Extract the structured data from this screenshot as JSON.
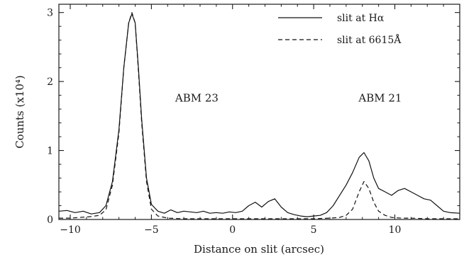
{
  "chart_data": {
    "type": "line",
    "xlabel": "Distance on slit (arcsec)",
    "ylabel": "Counts (x10⁴)",
    "xlim": [
      -10.7,
      14
    ],
    "ylim": [
      0,
      3.12
    ],
    "x_ticks": [
      -10,
      -5,
      0,
      5,
      10
    ],
    "y_ticks": [
      0,
      1,
      2,
      3
    ],
    "x_tick_labels": [
      "−10",
      "−5",
      "0",
      "5",
      "10"
    ],
    "y_tick_labels": [
      "0",
      "1",
      "2",
      "3"
    ],
    "grid": false,
    "legend_position": "top-right",
    "annotations": [
      {
        "text": "ABM 23",
        "x": -2.2,
        "y": 1.71
      },
      {
        "text": "ABM 21",
        "x": 9.1,
        "y": 1.71
      }
    ],
    "series": [
      {
        "name": "slit at Hα",
        "style": "solid",
        "x": [
          -10.7,
          -10.2,
          -9.7,
          -9.2,
          -8.7,
          -8.2,
          -7.8,
          -7.4,
          -7.0,
          -6.7,
          -6.4,
          -6.2,
          -6.0,
          -5.8,
          -5.6,
          -5.3,
          -5.0,
          -4.6,
          -4.2,
          -3.8,
          -3.4,
          -3.0,
          -2.6,
          -2.2,
          -1.8,
          -1.4,
          -1.0,
          -0.6,
          -0.2,
          0.2,
          0.6,
          1.0,
          1.4,
          1.8,
          2.2,
          2.6,
          3.0,
          3.4,
          3.8,
          4.2,
          4.6,
          5.0,
          5.4,
          5.8,
          6.2,
          6.6,
          7.0,
          7.4,
          7.8,
          8.1,
          8.4,
          8.7,
          9.0,
          9.4,
          9.8,
          10.2,
          10.6,
          11.0,
          11.4,
          11.8,
          12.2,
          12.6,
          13.0,
          13.4,
          14.0
        ],
        "y": [
          0.12,
          0.13,
          0.1,
          0.12,
          0.08,
          0.1,
          0.2,
          0.55,
          1.3,
          2.2,
          2.85,
          2.98,
          2.85,
          2.2,
          1.45,
          0.6,
          0.22,
          0.12,
          0.09,
          0.14,
          0.1,
          0.12,
          0.11,
          0.1,
          0.12,
          0.09,
          0.1,
          0.09,
          0.11,
          0.1,
          0.12,
          0.2,
          0.25,
          0.18,
          0.26,
          0.3,
          0.18,
          0.1,
          0.07,
          0.05,
          0.04,
          0.05,
          0.06,
          0.1,
          0.2,
          0.35,
          0.5,
          0.68,
          0.9,
          0.97,
          0.85,
          0.6,
          0.45,
          0.4,
          0.35,
          0.42,
          0.45,
          0.4,
          0.35,
          0.3,
          0.28,
          0.2,
          0.12,
          0.1,
          0.09
        ]
      },
      {
        "name": "slit at 6615Å",
        "style": "dashed",
        "x": [
          -10.7,
          -10.0,
          -9.4,
          -8.8,
          -8.2,
          -7.8,
          -7.4,
          -7.0,
          -6.7,
          -6.4,
          -6.2,
          -6.0,
          -5.8,
          -5.6,
          -5.3,
          -5.0,
          -4.6,
          -4.0,
          -3.0,
          -2.0,
          -1.0,
          0.0,
          1.0,
          2.0,
          3.0,
          4.0,
          5.0,
          6.0,
          6.6,
          7.0,
          7.4,
          7.8,
          8.1,
          8.4,
          8.7,
          9.0,
          9.4,
          9.8,
          10.4,
          11.0,
          12.0,
          13.0,
          14.0
        ],
        "y": [
          0.02,
          0.02,
          0.03,
          0.04,
          0.06,
          0.14,
          0.5,
          1.25,
          2.2,
          2.85,
          3.0,
          2.85,
          2.15,
          1.4,
          0.55,
          0.15,
          0.05,
          0.02,
          0.01,
          0.01,
          0.01,
          0.01,
          0.01,
          0.01,
          0.01,
          0.01,
          0.01,
          0.02,
          0.03,
          0.06,
          0.15,
          0.4,
          0.55,
          0.45,
          0.25,
          0.12,
          0.06,
          0.03,
          0.02,
          0.02,
          0.01,
          0.01,
          0.01
        ]
      }
    ]
  }
}
